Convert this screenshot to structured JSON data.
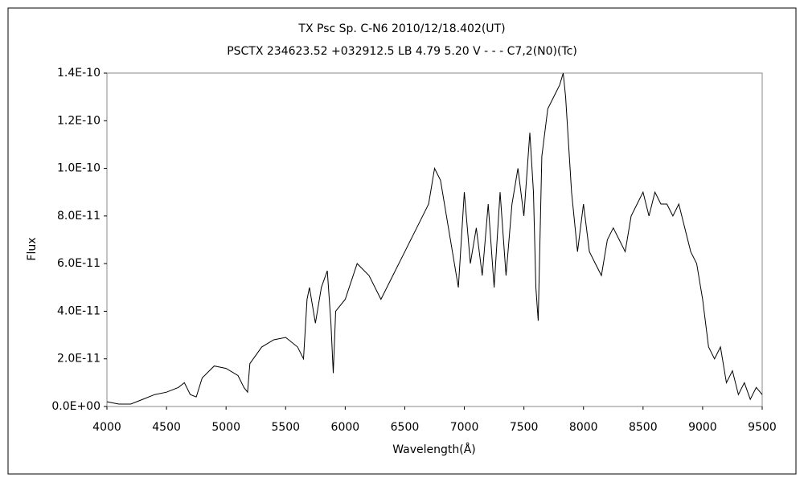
{
  "chart_data": {
    "type": "line",
    "title": "TX Psc    Sp. C-N6    2010/12/18.402(UT)",
    "subtitle": "PSCTX 234623.52 +032912.5 LB 4.79 5.20 V - - - C7,2(N0)(Tc)",
    "x_label": "Wavelength(Å)",
    "y_label": "Flux",
    "xlim": [
      4000,
      9500
    ],
    "xticks": [
      4000,
      4500,
      5000,
      5500,
      6000,
      6500,
      7000,
      7500,
      8000,
      8500,
      9000,
      9500
    ],
    "ylim": [
      0,
      1.4e-10
    ],
    "yticks": [
      {
        "value": 0,
        "label": "0.0E+00"
      },
      {
        "value": 2e-11,
        "label": "2.0E-11"
      },
      {
        "value": 4e-11,
        "label": "4.0E-11"
      },
      {
        "value": 6e-11,
        "label": "6.0E-11"
      },
      {
        "value": 8e-11,
        "label": "8.0E-11"
      },
      {
        "value": 1e-10,
        "label": "1.0E-10"
      },
      {
        "value": 1.2e-10,
        "label": "1.2E-10"
      },
      {
        "value": 1.4e-10,
        "label": "1.4E-10"
      }
    ],
    "x": [
      4000,
      4100,
      4200,
      4300,
      4400,
      4500,
      4600,
      4650,
      4700,
      4750,
      4800,
      4900,
      5000,
      5100,
      5150,
      5180,
      5200,
      5300,
      5400,
      5500,
      5600,
      5650,
      5680,
      5700,
      5750,
      5800,
      5850,
      5880,
      5900,
      5920,
      6000,
      6100,
      6200,
      6300,
      6400,
      6500,
      6600,
      6700,
      6750,
      6800,
      6850,
      6900,
      6950,
      7000,
      7050,
      7100,
      7150,
      7200,
      7250,
      7300,
      7350,
      7400,
      7450,
      7500,
      7550,
      7580,
      7600,
      7620,
      7650,
      7700,
      7750,
      7800,
      7830,
      7850,
      7900,
      7950,
      8000,
      8050,
      8100,
      8150,
      8200,
      8250,
      8300,
      8350,
      8400,
      8450,
      8500,
      8550,
      8600,
      8650,
      8700,
      8750,
      8800,
      8850,
      8900,
      8950,
      9000,
      9050,
      9100,
      9150,
      9200,
      9250,
      9300,
      9350,
      9400,
      9450,
      9500
    ],
    "series": [
      {
        "color": "#000000",
        "values": [
          2e-12,
          1e-12,
          1e-12,
          3e-12,
          5e-12,
          6e-12,
          8e-12,
          1e-11,
          5e-12,
          4e-12,
          1.2e-11,
          1.7e-11,
          1.6e-11,
          1.3e-11,
          8e-12,
          6e-12,
          1.8e-11,
          2.5e-11,
          2.8e-11,
          2.9e-11,
          2.5e-11,
          2e-11,
          4.5e-11,
          5e-11,
          3.5e-11,
          5e-11,
          5.7e-11,
          3.5e-11,
          1.4e-11,
          4e-11,
          4.5e-11,
          6e-11,
          5.5e-11,
          4.5e-11,
          5.5e-11,
          6.5e-11,
          7.5e-11,
          8.5e-11,
          1e-10,
          9.5e-11,
          8e-11,
          6.5e-11,
          5e-11,
          9e-11,
          6e-11,
          7.5e-11,
          5.5e-11,
          8.5e-11,
          5e-11,
          9e-11,
          5.5e-11,
          8.5e-11,
          1e-10,
          8e-11,
          1.15e-10,
          9e-11,
          5e-11,
          3.6e-11,
          1.05e-10,
          1.25e-10,
          1.3e-10,
          1.35e-10,
          1.4e-10,
          1.3e-10,
          9e-11,
          6.5e-11,
          8.5e-11,
          6.5e-11,
          6e-11,
          5.5e-11,
          7e-11,
          7.5e-11,
          7e-11,
          6.5e-11,
          8e-11,
          8.5e-11,
          9e-11,
          8e-11,
          9e-11,
          8.5e-11,
          8.5e-11,
          8e-11,
          8.5e-11,
          7.5e-11,
          6.5e-11,
          6e-11,
          4.5e-11,
          2.5e-11,
          2e-11,
          2.5e-11,
          1e-11,
          1.5e-11,
          5e-12,
          1e-11,
          3e-12,
          8e-12,
          5e-12
        ]
      }
    ]
  }
}
